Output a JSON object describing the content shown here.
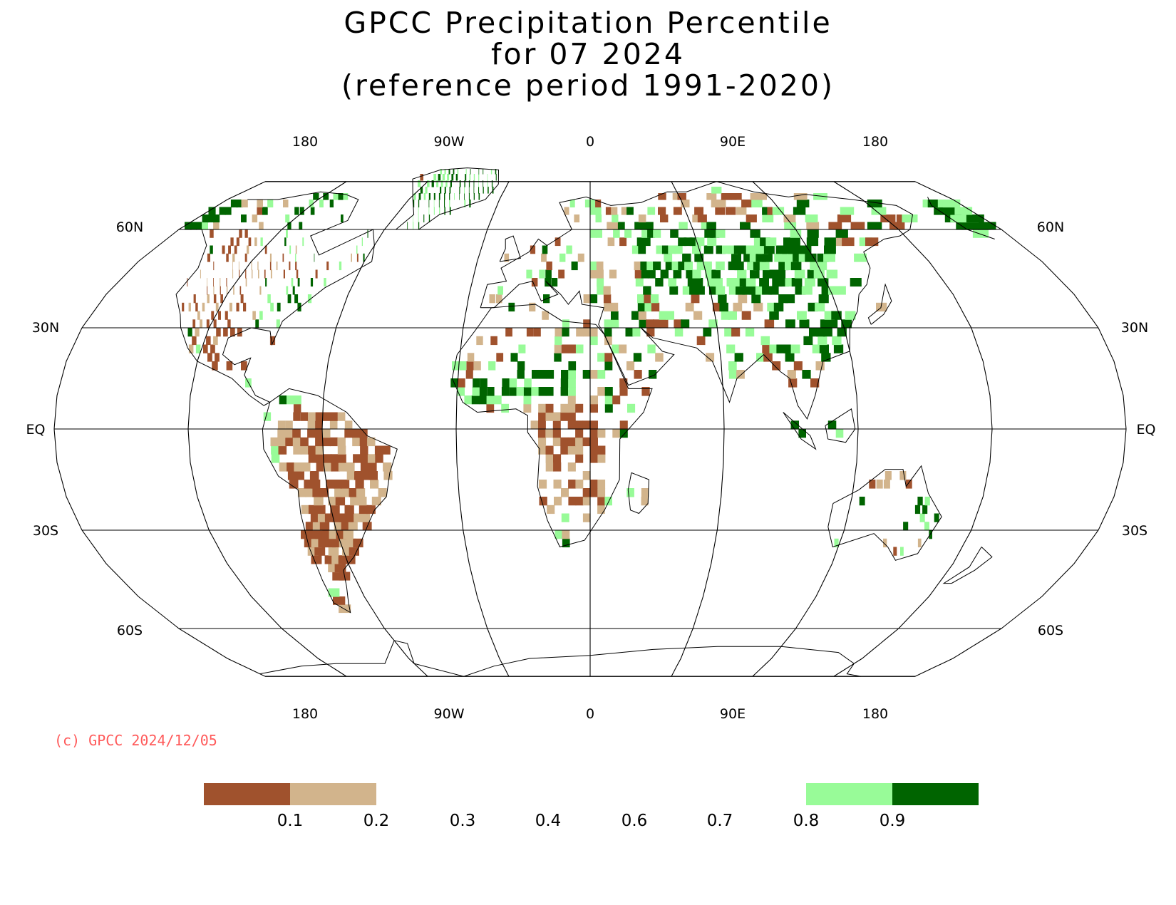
{
  "title": {
    "line1": "GPCC Precipitation Percentile",
    "line2": "for 07 2024",
    "line3": "(reference period 1991-2020)"
  },
  "longitude_labels": [
    "180",
    "90W",
    "0",
    "90E",
    "180"
  ],
  "latitude_labels": {
    "left": [
      "60N",
      "30N",
      "EQ",
      "30S",
      "60S"
    ],
    "right": [
      "60N",
      "30N",
      "EQ",
      "30S",
      "60S"
    ]
  },
  "credit": "(c) GPCC 2024/12/05",
  "legend": {
    "labels": [
      "0.1",
      "0.2",
      "0.3",
      "0.4",
      "0.6",
      "0.7",
      "0.8",
      "0.9"
    ],
    "bins": [
      {
        "range": "< 0.1",
        "color": "#a0522d"
      },
      {
        "range": "0.1-0.2",
        "color": "#d2b48c"
      },
      {
        "range": "0.2-0.8",
        "color": "#ffffff"
      },
      {
        "range": "0.8-0.9",
        "color": "#98fb98"
      },
      {
        "range": "> 0.9",
        "color": "#006400"
      }
    ]
  },
  "colors": {
    "very_dry": "#a0522d",
    "dry": "#d2b48c",
    "wet": "#98fb98",
    "very_wet": "#006400",
    "credit": "#ff5a5a"
  },
  "projection": "robinson-like, central meridian 30E"
}
